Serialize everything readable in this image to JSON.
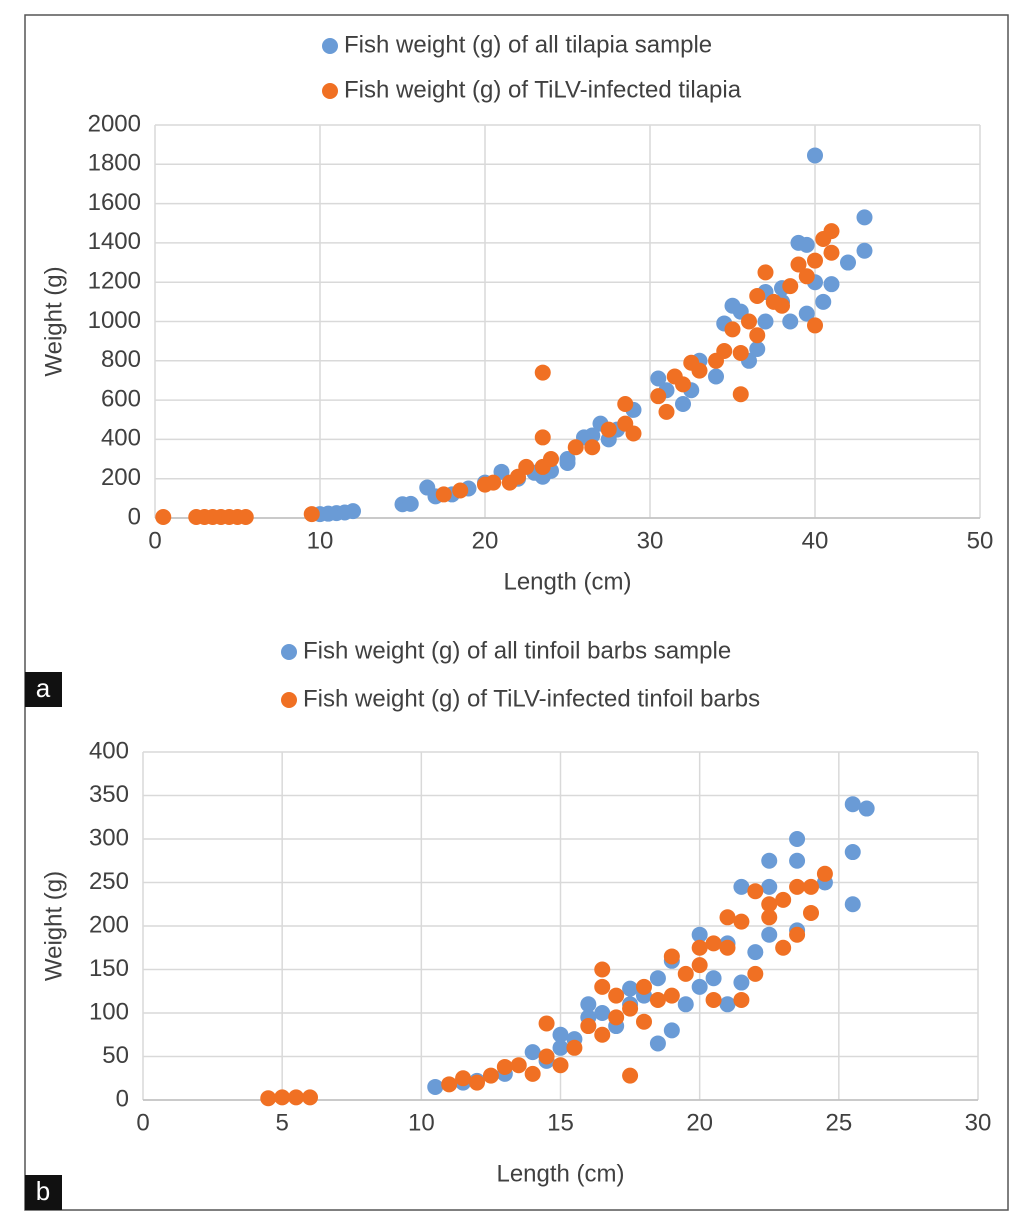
{
  "chart_data": [
    {
      "type": "scatter",
      "label": "a",
      "xlabel": "Length (cm)",
      "ylabel": "Weight (g)",
      "xlim": [
        0,
        50
      ],
      "ylim": [
        0,
        2000
      ],
      "xticks": [
        0,
        10,
        20,
        30,
        40,
        50
      ],
      "yticks": [
        0,
        200,
        400,
        600,
        800,
        1000,
        1200,
        1400,
        1600,
        1800,
        2000
      ],
      "grid": true,
      "series": [
        {
          "name": "Fish weight (g) of all tilapia sample",
          "color": "#6a9bd6",
          "x": [
            10,
            10.5,
            11,
            11.5,
            12,
            15,
            15.5,
            16.5,
            17,
            18,
            19,
            20,
            21,
            22,
            23,
            23.5,
            24,
            25,
            25,
            26,
            26.5,
            27,
            27.5,
            28,
            29,
            30.5,
            31,
            32,
            32.5,
            33,
            34,
            34.5,
            35,
            35.5,
            36,
            36.5,
            37,
            37,
            38,
            38.5,
            39,
            39.5,
            40,
            40,
            40.5,
            41,
            42,
            43,
            43,
            39.5,
            38
          ],
          "values": [
            20,
            22,
            25,
            28,
            35,
            70,
            72,
            155,
            110,
            120,
            150,
            180,
            235,
            200,
            230,
            210,
            240,
            300,
            280,
            410,
            420,
            480,
            400,
            450,
            550,
            710,
            650,
            580,
            650,
            800,
            720,
            990,
            1080,
            1050,
            800,
            860,
            1000,
            1150,
            1100,
            1000,
            1400,
            1390,
            1845,
            1200,
            1100,
            1190,
            1300,
            1530,
            1360,
            1040,
            1170
          ]
        },
        {
          "name": "Fish weight (g) of TiLV-infected tilapia",
          "color": "#f07023",
          "x": [
            0.5,
            2.5,
            3,
            3.5,
            4,
            4.5,
            5,
            5.5,
            9.5,
            17.5,
            18.5,
            20,
            20.5,
            21.5,
            22,
            22.5,
            23.5,
            23.5,
            23.5,
            24,
            25.5,
            26.5,
            27.5,
            28.5,
            28.5,
            29,
            30.5,
            31,
            31.5,
            32,
            32.5,
            33,
            34,
            34.5,
            35,
            35.5,
            35.5,
            36,
            36.5,
            36.5,
            37,
            38,
            38.5,
            39,
            39.5,
            40,
            40,
            40.5,
            41,
            41,
            37.5
          ],
          "values": [
            5,
            5,
            5,
            5,
            5,
            5,
            5,
            5,
            20,
            120,
            140,
            170,
            180,
            180,
            210,
            260,
            740,
            410,
            260,
            300,
            360,
            360,
            450,
            580,
            480,
            430,
            620,
            540,
            720,
            680,
            790,
            750,
            800,
            850,
            960,
            630,
            840,
            1000,
            1130,
            930,
            1250,
            1080,
            1180,
            1290,
            1230,
            980,
            1310,
            1420,
            1460,
            1350,
            1100
          ]
        }
      ]
    },
    {
      "type": "scatter",
      "label": "b",
      "xlabel": "Length (cm)",
      "ylabel": "Weight (g)",
      "xlim": [
        0,
        30
      ],
      "ylim": [
        0,
        400
      ],
      "xticks": [
        0,
        5,
        10,
        15,
        20,
        25,
        30
      ],
      "yticks": [
        0,
        50,
        100,
        150,
        200,
        250,
        300,
        350,
        400
      ],
      "grid": true,
      "series": [
        {
          "name": "Fish weight (g) of all tinfoil barbs sample",
          "color": "#6a9bd6",
          "x": [
            10.5,
            11.5,
            12,
            13,
            14,
            14.5,
            15,
            15,
            15.5,
            16,
            16,
            16.5,
            17,
            17.5,
            17.5,
            18,
            18.5,
            18.5,
            19,
            19,
            19.5,
            20,
            20,
            20.5,
            21,
            21,
            21.5,
            21.5,
            22,
            22.5,
            22.5,
            22.5,
            23.5,
            23.5,
            23.5,
            24.5,
            25.5,
            25.5,
            25.5,
            26
          ],
          "values": [
            15,
            20,
            22,
            30,
            55,
            45,
            75,
            60,
            70,
            110,
            95,
            100,
            85,
            128,
            110,
            120,
            140,
            65,
            80,
            160,
            110,
            190,
            130,
            140,
            180,
            110,
            245,
            135,
            170,
            275,
            245,
            190,
            300,
            275,
            195,
            250,
            340,
            285,
            225,
            335
          ]
        },
        {
          "name": "Fish weight (g) of TiLV-infected tinfoil barbs",
          "color": "#f07023",
          "x": [
            4.5,
            5,
            5.5,
            6,
            11,
            11.5,
            12,
            12.5,
            13,
            13.5,
            14,
            14.5,
            14.5,
            15,
            15.5,
            16,
            16.5,
            16.5,
            16.5,
            17,
            17,
            17.5,
            17.5,
            18,
            18,
            18.5,
            19,
            19,
            19.5,
            20,
            20,
            20.5,
            20.5,
            21,
            21,
            21.5,
            21.5,
            22,
            22,
            22.5,
            22.5,
            23,
            23,
            23.5,
            23.5,
            24,
            24,
            24.5
          ],
          "values": [
            2,
            3,
            3,
            3,
            18,
            25,
            20,
            28,
            38,
            40,
            30,
            88,
            50,
            40,
            60,
            85,
            150,
            130,
            75,
            95,
            120,
            28,
            105,
            130,
            90,
            115,
            165,
            120,
            145,
            175,
            155,
            180,
            115,
            210,
            175,
            205,
            115,
            240,
            145,
            225,
            210,
            230,
            175,
            245,
            190,
            245,
            215,
            260
          ]
        }
      ]
    }
  ]
}
